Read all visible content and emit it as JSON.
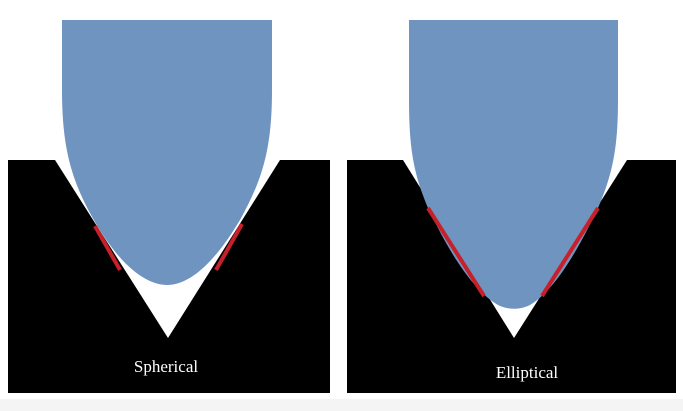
{
  "panels": [
    {
      "label": "Spherical"
    },
    {
      "label": "Elliptical"
    }
  ],
  "colors": {
    "stylus": "#7094c0",
    "contact_line": "#c8202a",
    "workpiece": "#000000",
    "background": "#ffffff"
  }
}
